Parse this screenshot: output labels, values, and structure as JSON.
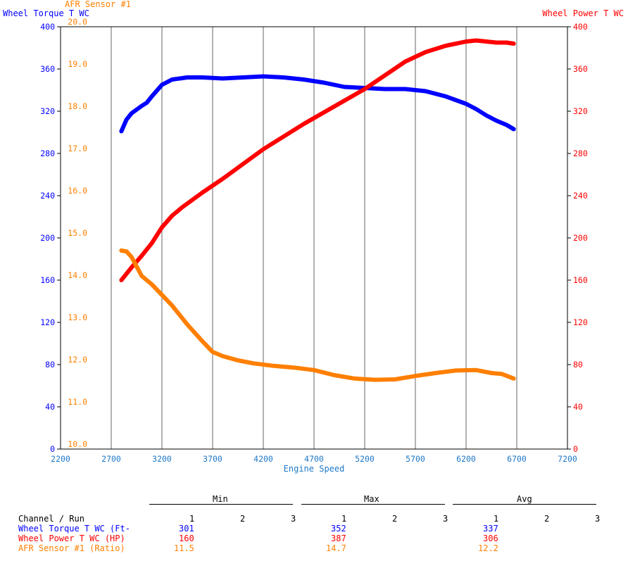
{
  "chart_data": {
    "type": "line",
    "xlabel": "Engine Speed",
    "xlim": [
      2200,
      7200
    ],
    "x_ticks": [
      "2200",
      "2700",
      "3200",
      "3700",
      "4200",
      "4700",
      "5200",
      "5700",
      "6200",
      "6700",
      "7200"
    ],
    "left_axis": {
      "label": "Wheel Torque T WC",
      "ylim": [
        0,
        400
      ],
      "ticks": [
        "0",
        "40",
        "80",
        "120",
        "160",
        "200",
        "240",
        "280",
        "320",
        "360",
        "400"
      ],
      "color": "#0000ff"
    },
    "right_axis": {
      "label": "Wheel Power T WC",
      "ylim": [
        0,
        400
      ],
      "ticks": [
        "0",
        "40",
        "80",
        "120",
        "160",
        "200",
        "240",
        "280",
        "320",
        "360",
        "400"
      ],
      "color": "#ff0000"
    },
    "afr_axis": {
      "label": "AFR Sensor #1",
      "ylim": [
        10.0,
        20.0
      ],
      "ticks": [
        "10.0",
        "11.0",
        "12.0",
        "13.0",
        "14.0",
        "15.0",
        "16.0",
        "17.0",
        "18.0",
        "19.0",
        "20.0"
      ],
      "color": "#ff7f00"
    },
    "grid": true,
    "series": [
      {
        "name": "Wheel Torque T WC",
        "axis": "left",
        "color": "#0000ff",
        "x": [
          2800,
          2850,
          2900,
          3000,
          3050,
          3100,
          3200,
          3300,
          3450,
          3600,
          3800,
          4000,
          4200,
          4400,
          4600,
          4800,
          5000,
          5200,
          5400,
          5600,
          5800,
          6000,
          6200,
          6300,
          6400,
          6500,
          6600,
          6670
        ],
        "y": [
          301,
          312,
          318,
          325,
          328,
          334,
          345,
          350,
          352,
          352,
          351,
          352,
          353,
          352,
          350,
          347,
          343,
          342,
          341,
          341,
          339,
          334,
          327,
          322,
          316,
          311,
          307,
          303
        ]
      },
      {
        "name": "Wheel Power T WC",
        "axis": "right",
        "color": "#ff0000",
        "x": [
          2800,
          2900,
          3000,
          3100,
          3200,
          3300,
          3400,
          3500,
          3600,
          3800,
          4000,
          4200,
          4400,
          4600,
          4800,
          5000,
          5200,
          5400,
          5600,
          5800,
          6000,
          6200,
          6300,
          6400,
          6500,
          6600,
          6670
        ],
        "y": [
          160,
          172,
          183,
          195,
          210,
          221,
          229,
          236,
          243,
          256,
          270,
          284,
          296,
          308,
          319,
          330,
          341,
          354,
          367,
          376,
          382,
          386,
          387,
          386,
          385,
          385,
          384
        ]
      },
      {
        "name": "AFR Sensor #1",
        "axis": "afr",
        "color": "#ff7f00",
        "x": [
          2800,
          2850,
          2900,
          3000,
          3100,
          3200,
          3300,
          3450,
          3600,
          3700,
          3800,
          3950,
          4100,
          4300,
          4500,
          4700,
          4900,
          5100,
          5300,
          5500,
          5700,
          5900,
          6100,
          6300,
          6450,
          6550,
          6670
        ],
        "y": [
          14.7,
          14.68,
          14.55,
          14.1,
          13.9,
          13.65,
          13.4,
          12.95,
          12.55,
          12.3,
          12.2,
          12.1,
          12.03,
          11.97,
          11.93,
          11.87,
          11.75,
          11.67,
          11.64,
          11.65,
          11.73,
          11.8,
          11.86,
          11.87,
          11.8,
          11.78,
          11.67
        ]
      }
    ]
  },
  "summary": {
    "groups": [
      "Min",
      "Max",
      "Avg"
    ],
    "run_header": "Channel / Run",
    "runs": [
      "1",
      "2",
      "3"
    ],
    "rows": [
      {
        "channel": "Wheel Torque T WC (Ft-",
        "color": "#0000ff",
        "min": "301",
        "max": "352",
        "avg": "337"
      },
      {
        "channel": "Wheel Power T WC (HP)",
        "color": "#ff0000",
        "min": "160",
        "max": "387",
        "avg": "306"
      },
      {
        "channel": "AFR Sensor #1 (Ratio)",
        "color": "#ff7f00",
        "min": "11.5",
        "max": "14.7",
        "avg": "12.2"
      }
    ]
  }
}
